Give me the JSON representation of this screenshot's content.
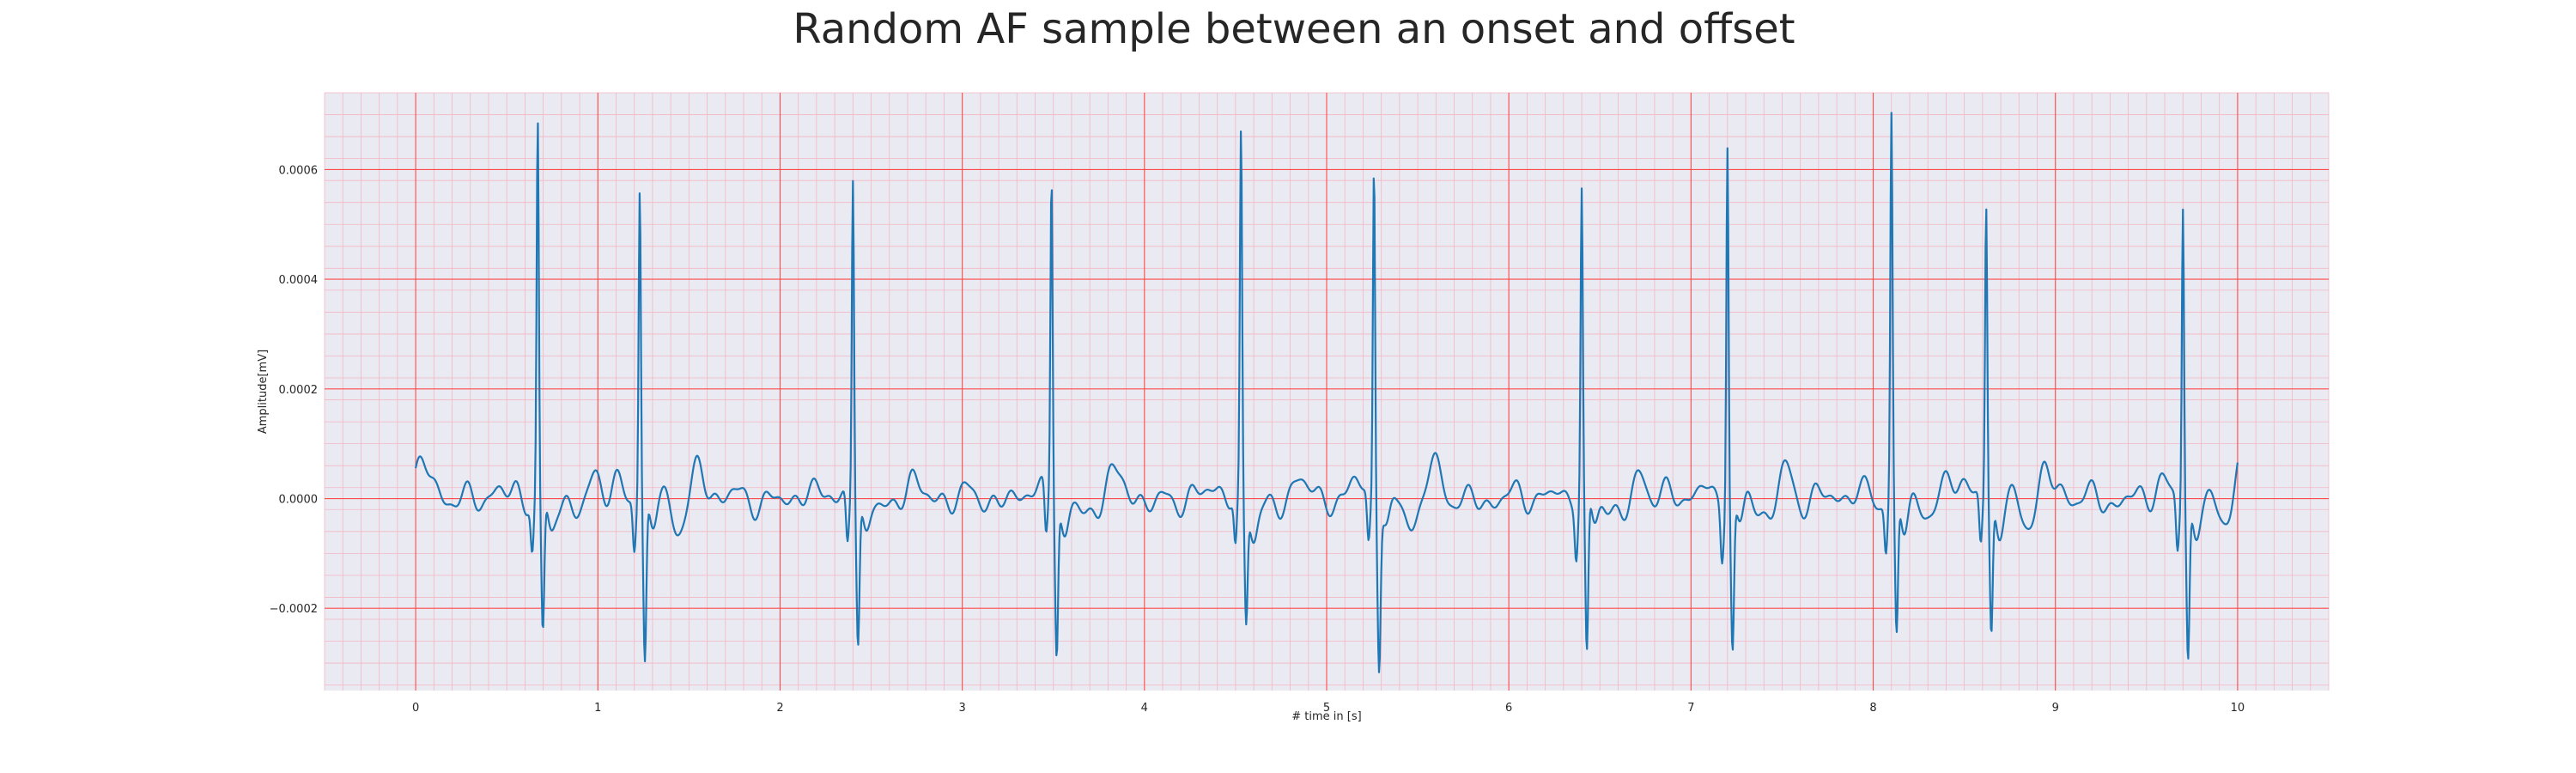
{
  "chart_data": {
    "type": "line",
    "title": "Random AF sample between an onset and offset",
    "xlabel": "# time in [s]",
    "ylabel": "Amplitude[mV]",
    "xlim": [
      -0.5,
      10.5
    ],
    "ylim": [
      -0.00035,
      0.00074
    ],
    "x_ticks": [
      0,
      1,
      2,
      3,
      4,
      5,
      6,
      7,
      8,
      9,
      10
    ],
    "x_tick_labels": [
      "0",
      "1",
      "2",
      "3",
      "4",
      "5",
      "6",
      "7",
      "8",
      "9",
      "10"
    ],
    "y_ticks": [
      -0.0002,
      0.0,
      0.0002,
      0.0004,
      0.0006
    ],
    "y_tick_labels": [
      "−0.0002",
      "0.0000",
      "0.0002",
      "0.0004",
      "0.0006"
    ],
    "grid": true,
    "minor_grid": true,
    "legend": "none",
    "colors": {
      "background": "#eaeaf2",
      "major_grid": "#ff4a4a",
      "minor_grid": "#f4b6c2",
      "line": "#1f77b4"
    },
    "series": [
      {
        "x_start": 0,
        "x_end": 10,
        "r_peaks": [
          {
            "t": 0.67,
            "r": 0.00068,
            "s": -0.00025
          },
          {
            "t": 1.23,
            "r": 0.00057,
            "s": -0.0003
          },
          {
            "t": 2.4,
            "r": 0.00059,
            "s": -0.00026
          },
          {
            "t": 3.49,
            "r": 0.00059,
            "s": -0.00028
          },
          {
            "t": 4.53,
            "r": 0.00065,
            "s": -0.00022
          },
          {
            "t": 5.26,
            "r": 0.00062,
            "s": -0.00028
          },
          {
            "t": 6.4,
            "r": 0.00056,
            "s": -0.0003
          },
          {
            "t": 7.2,
            "r": 0.00067,
            "s": -0.00027
          },
          {
            "t": 8.1,
            "r": 0.00069,
            "s": -0.00026
          },
          {
            "t": 8.62,
            "r": 0.00053,
            "s": -0.00025
          },
          {
            "t": 9.7,
            "r": 0.00055,
            "s": -0.00028
          }
        ]
      }
    ]
  }
}
